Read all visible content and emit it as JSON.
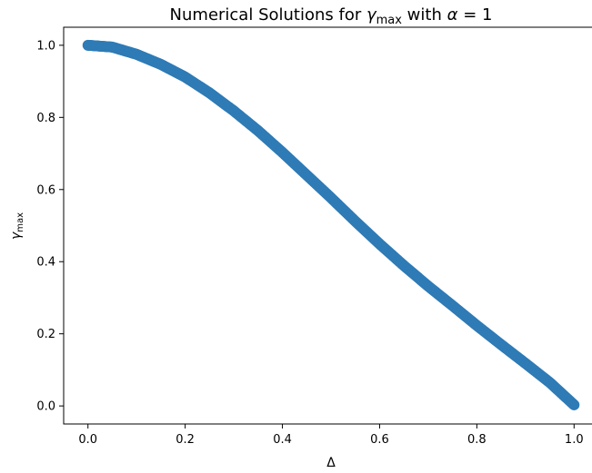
{
  "chart_data": {
    "type": "scatter",
    "title": "Numerical Solutions for γ_max with α = 1",
    "title_parts": {
      "prefix": "Numerical Solutions for ",
      "gamma": "γ",
      "gamma_sub": "max",
      "middle": " with ",
      "alpha": "α",
      "suffix": " = 1"
    },
    "xlabel": "Δ",
    "ylabel": "γ_max",
    "ylabel_parts": {
      "main": "γ",
      "sub": "max"
    },
    "xlim": [
      -0.05,
      1.05
    ],
    "ylim": [
      -0.05,
      1.05
    ],
    "xticks": [
      0.0,
      0.2,
      0.4,
      0.6,
      0.8,
      1.0
    ],
    "xtick_labels": [
      "0.0",
      "0.2",
      "0.4",
      "0.6",
      "0.8",
      "1.0"
    ],
    "yticks": [
      0.0,
      0.2,
      0.4,
      0.6,
      0.8,
      1.0
    ],
    "ytick_labels": [
      "0.0",
      "0.2",
      "0.4",
      "0.6",
      "0.8",
      "1.0"
    ],
    "grid": false,
    "marker_color": "#2e7bb6",
    "series": [
      {
        "x": [
          0.0,
          0.05,
          0.1,
          0.15,
          0.2,
          0.25,
          0.3,
          0.35,
          0.4,
          0.45,
          0.5,
          0.55,
          0.6,
          0.65,
          0.7,
          0.75,
          0.8,
          0.85,
          0.9,
          0.95,
          1.0
        ],
        "y": [
          1.0,
          0.995,
          0.975,
          0.947,
          0.912,
          0.868,
          0.818,
          0.763,
          0.703,
          0.64,
          0.577,
          0.512,
          0.449,
          0.389,
          0.332,
          0.278,
          0.223,
          0.17,
          0.118,
          0.065,
          0.003
        ]
      }
    ]
  }
}
